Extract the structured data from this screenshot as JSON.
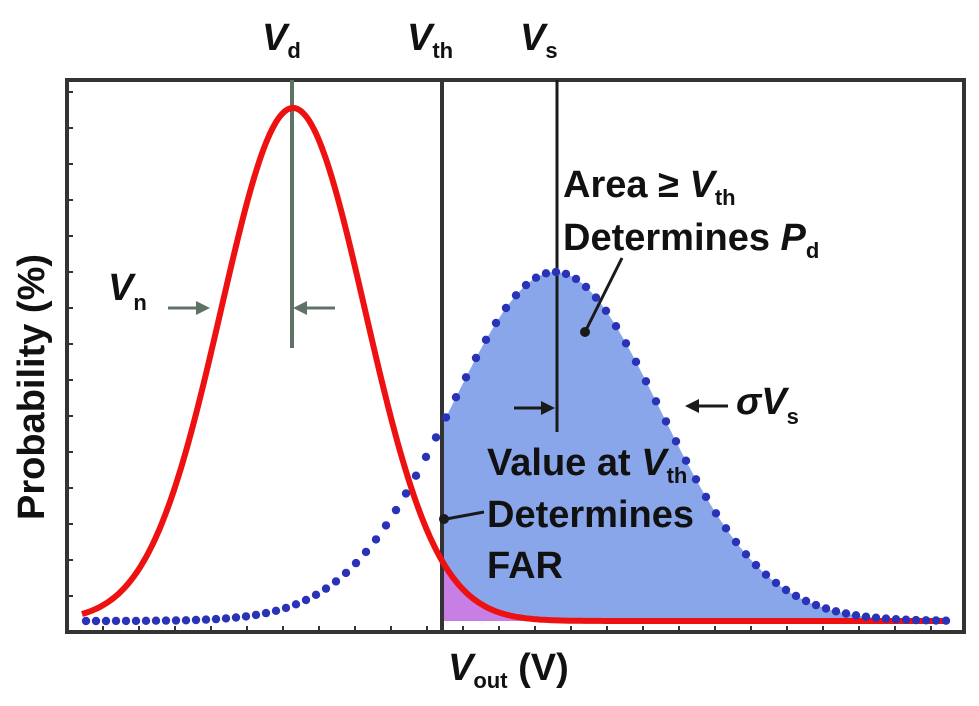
{
  "labels": {
    "vd_main": "V",
    "vd_sub": "d",
    "vth_main": "V",
    "vth_sub": "th",
    "vs_main": "V",
    "vs_sub": "s",
    "vn_main": "V",
    "vn_sub": "n",
    "sigma_main": "σV",
    "sigma_sub": "s",
    "area_line1_a": "Area ≥ ",
    "area_line1_v": "V",
    "area_line1_sub": "th",
    "area_line2_a": "Determines ",
    "area_line2_p": "P",
    "area_line2_sub": "d",
    "value_line1_a": "Value at ",
    "value_line1_v": "V",
    "value_line1_sub": "th",
    "value_line2": "Determines",
    "value_line3": "FAR",
    "ylabel": "Probability (%)",
    "xlabel_main": "V",
    "xlabel_sub": "out",
    "xlabel_unit": " (V)"
  },
  "colors": {
    "noise_curve": "#ee1111",
    "signal_curve": "#2a33b8",
    "signal_fill": "#8aa6ea",
    "overlap_fill": "#c77fe6",
    "marker_line": "#5f7266",
    "axis": "#333333"
  }
}
